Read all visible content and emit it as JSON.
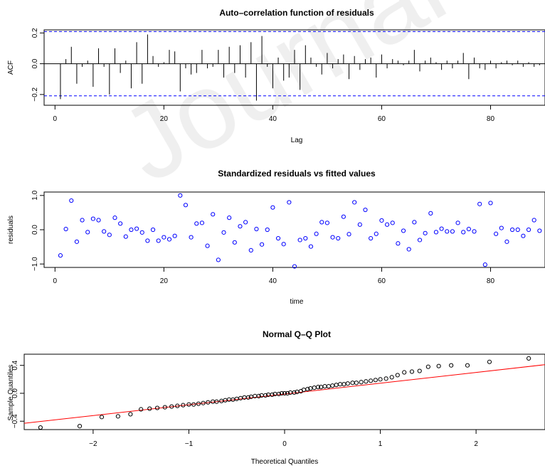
{
  "watermark": "Journal",
  "chart_data": [
    {
      "type": "bar",
      "title": "Auto–correlation function of residuals",
      "xlabel": "Lag",
      "ylabel": "ACF",
      "xlim": [
        -2,
        90
      ],
      "ylim": [
        -0.27,
        0.22
      ],
      "xticks": [
        0,
        20,
        40,
        60,
        80
      ],
      "yticks": [
        -0.2,
        0.0,
        0.2
      ],
      "tick_labels_y": [
        "−0.2",
        "0.0",
        "0.2"
      ],
      "confidence_bound": 0.209,
      "bound_color": "#0000ff",
      "lags": [
        1,
        2,
        3,
        4,
        5,
        6,
        7,
        8,
        9,
        10,
        11,
        12,
        13,
        14,
        15,
        16,
        17,
        18,
        19,
        20,
        21,
        22,
        23,
        24,
        25,
        26,
        27,
        28,
        29,
        30,
        31,
        32,
        33,
        34,
        35,
        36,
        37,
        38,
        39,
        40,
        41,
        42,
        43,
        44,
        45,
        46,
        47,
        48,
        49,
        50,
        51,
        52,
        53,
        54,
        55,
        56,
        57,
        58,
        59,
        60,
        61,
        62,
        63,
        64,
        65,
        66,
        67,
        68,
        69,
        70,
        71,
        72,
        73,
        74,
        75,
        76,
        77,
        78,
        79,
        80,
        81,
        82,
        83,
        84,
        85,
        86,
        87,
        88,
        89
      ],
      "values": [
        -0.23,
        0.03,
        0.11,
        -0.13,
        -0.02,
        0.02,
        -0.15,
        0.1,
        -0.02,
        -0.2,
        0.1,
        -0.06,
        0.02,
        -0.16,
        0.14,
        -0.13,
        0.19,
        0.05,
        -0.02,
        0.01,
        0.09,
        0.08,
        -0.18,
        -0.03,
        -0.07,
        -0.06,
        0.09,
        -0.03,
        -0.02,
        0.09,
        -0.09,
        0.11,
        -0.06,
        0.12,
        -0.09,
        0.14,
        -0.24,
        0.18,
        -0.02,
        -0.16,
        0.04,
        -0.11,
        -0.09,
        0.09,
        -0.17,
        0.12,
        0.04,
        -0.02,
        -0.07,
        0.07,
        -0.03,
        0.03,
        0.06,
        -0.1,
        0.05,
        -0.04,
        0.03,
        0.04,
        -0.09,
        0.06,
        -0.03,
        0.03,
        0.02,
        -0.01,
        0.02,
        0.09,
        -0.05,
        0.02,
        0.04,
        0.01,
        -0.04,
        0.02,
        -0.03,
        0.02,
        0.07,
        -0.1,
        0.04,
        -0.03,
        -0.04,
        0.02,
        -0.03,
        0.01,
        0.02,
        -0.01,
        0.02,
        -0.02,
        0.01,
        -0.02,
        -0.01
      ]
    },
    {
      "type": "scatter",
      "title": "Standardized residuals vs fitted values",
      "xlabel": "time",
      "ylabel": "residuals",
      "xlim": [
        -2,
        90
      ],
      "ylim": [
        -1.1,
        1.1
      ],
      "xticks": [
        0,
        20,
        40,
        60,
        80
      ],
      "yticks": [
        -1.0,
        0.0,
        1.0
      ],
      "tick_labels_y": [
        "−1.0",
        "0.0",
        "1.0"
      ],
      "point_color": "#0000ff",
      "x": [
        1,
        2,
        3,
        4,
        5,
        6,
        7,
        8,
        9,
        10,
        11,
        12,
        13,
        14,
        15,
        16,
        17,
        18,
        19,
        20,
        21,
        22,
        23,
        24,
        25,
        26,
        27,
        28,
        29,
        30,
        31,
        32,
        33,
        34,
        35,
        36,
        37,
        38,
        39,
        40,
        41,
        42,
        43,
        44,
        45,
        46,
        47,
        48,
        49,
        50,
        51,
        52,
        53,
        54,
        55,
        56,
        57,
        58,
        59,
        60,
        61,
        62,
        63,
        64,
        65,
        66,
        67,
        68,
        69,
        70,
        71,
        72,
        73,
        74,
        75,
        76,
        77,
        78,
        79,
        80,
        81,
        82,
        83,
        84,
        85,
        86,
        87,
        88,
        89
      ],
      "y": [
        -0.75,
        0.02,
        0.85,
        -0.35,
        0.28,
        -0.07,
        0.32,
        0.28,
        -0.05,
        -0.15,
        0.35,
        0.18,
        -0.2,
        0.0,
        0.03,
        -0.08,
        -0.32,
        0.0,
        -0.32,
        -0.22,
        -0.28,
        -0.18,
        1.0,
        0.72,
        -0.22,
        0.18,
        0.2,
        -0.47,
        0.45,
        -0.88,
        -0.08,
        0.35,
        -0.37,
        0.1,
        0.22,
        -0.6,
        0.02,
        -0.43,
        0.0,
        0.65,
        -0.25,
        -0.42,
        0.8,
        -1.07,
        -0.3,
        -0.25,
        -0.49,
        -0.12,
        0.22,
        0.2,
        -0.22,
        -0.25,
        0.38,
        -0.13,
        0.8,
        0.15,
        0.58,
        -0.25,
        -0.12,
        0.27,
        0.15,
        0.2,
        -0.4,
        -0.03,
        -0.57,
        0.22,
        -0.3,
        -0.1,
        0.48,
        -0.07,
        0.03,
        -0.05,
        -0.05,
        0.2,
        -0.07,
        0.02,
        -0.05,
        0.75,
        -1.02,
        0.78,
        -0.12,
        0.05,
        -0.35,
        0.0,
        0.0,
        -0.18,
        0.0,
        0.28,
        -0.03
      ]
    },
    {
      "type": "scatter",
      "title": "Normal Q–Q Plot",
      "xlabel": "Theoretical Quantiles",
      "ylabel": "Sample Quantiles",
      "xlim": [
        -2.72,
        2.72
      ],
      "ylim": [
        -0.52,
        0.56
      ],
      "xticks": [
        -2,
        -1,
        0,
        1,
        2
      ],
      "tick_labels_x": [
        "−2",
        "−1",
        "0",
        "1",
        "2"
      ],
      "yticks": [
        -0.4,
        0.0,
        0.4
      ],
      "tick_labels_y": [
        "−0.4",
        "0.0",
        "0.4"
      ],
      "point_color": "#000000",
      "line_color": "#ff0000",
      "qq_line": {
        "x": [
          -2.72,
          2.72
        ],
        "y": [
          -0.43,
          0.41
        ]
      },
      "x": [
        -2.55,
        -2.14,
        -1.91,
        -1.74,
        -1.61,
        -1.5,
        -1.41,
        -1.33,
        -1.25,
        -1.18,
        -1.12,
        -1.06,
        -1.0,
        -0.95,
        -0.9,
        -0.85,
        -0.8,
        -0.75,
        -0.71,
        -0.66,
        -0.62,
        -0.58,
        -0.54,
        -0.5,
        -0.46,
        -0.42,
        -0.38,
        -0.35,
        -0.31,
        -0.27,
        -0.24,
        -0.2,
        -0.17,
        -0.13,
        -0.1,
        -0.06,
        -0.03,
        0.0,
        0.03,
        0.06,
        0.1,
        0.13,
        0.17,
        0.2,
        0.24,
        0.27,
        0.31,
        0.35,
        0.38,
        0.42,
        0.46,
        0.5,
        0.54,
        0.58,
        0.62,
        0.66,
        0.71,
        0.75,
        0.8,
        0.85,
        0.9,
        0.95,
        1.0,
        1.06,
        1.12,
        1.18,
        1.25,
        1.33,
        1.41,
        1.5,
        1.61,
        1.74,
        1.91,
        2.14,
        2.55
      ],
      "y": [
        -0.49,
        -0.47,
        -0.34,
        -0.33,
        -0.3,
        -0.23,
        -0.22,
        -0.21,
        -0.2,
        -0.19,
        -0.18,
        -0.17,
        -0.16,
        -0.16,
        -0.15,
        -0.14,
        -0.13,
        -0.12,
        -0.12,
        -0.11,
        -0.1,
        -0.09,
        -0.09,
        -0.08,
        -0.07,
        -0.06,
        -0.06,
        -0.05,
        -0.04,
        -0.04,
        -0.03,
        -0.03,
        -0.02,
        -0.02,
        -0.01,
        -0.01,
        0.0,
        0.0,
        0.0,
        0.01,
        0.01,
        0.02,
        0.03,
        0.05,
        0.06,
        0.07,
        0.08,
        0.09,
        0.09,
        0.1,
        0.1,
        0.11,
        0.12,
        0.13,
        0.13,
        0.14,
        0.15,
        0.15,
        0.16,
        0.17,
        0.18,
        0.19,
        0.2,
        0.21,
        0.23,
        0.26,
        0.3,
        0.31,
        0.32,
        0.38,
        0.39,
        0.4,
        0.4,
        0.45,
        0.5
      ]
    }
  ]
}
